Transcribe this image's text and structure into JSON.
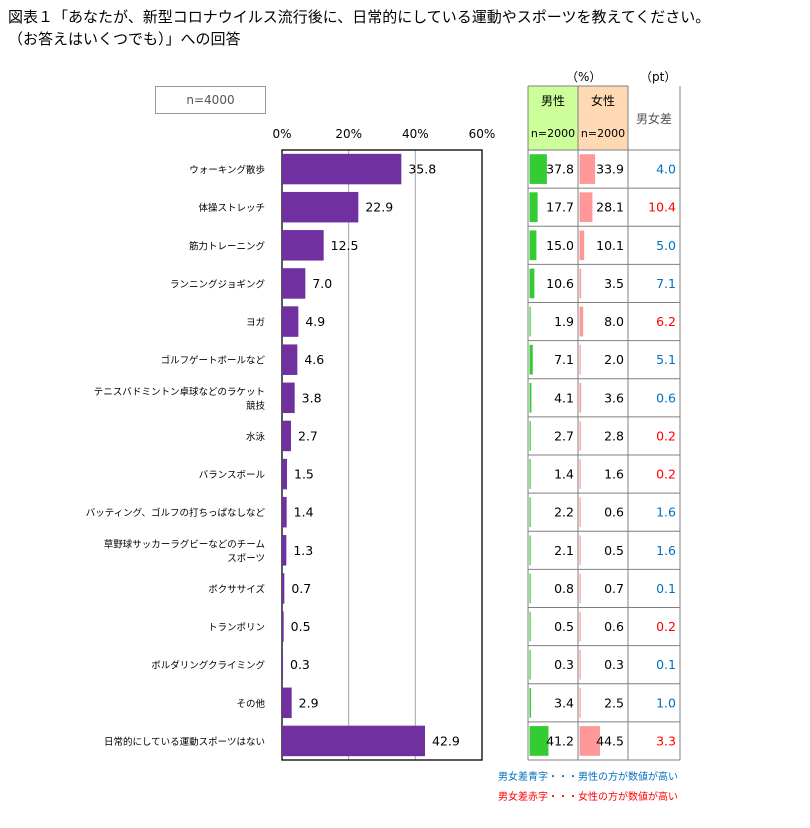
{
  "title_line1": "図表１「あなたが、新型コロナウイルス流行後に、日常的にしている運動やスポーツを教えてください。",
  "title_line2": "（お答えはいくつでも）」への回答",
  "sample_label": "n=4000",
  "unit_pct": "（%）",
  "unit_pt": "（pt）",
  "table_headers": {
    "male": "男性",
    "female": "女性",
    "male_n": "n=2000",
    "female_n": "n=2000",
    "diff": "男女差"
  },
  "notes": {
    "blue": "男女差青字・・・男性の方が数値が高い",
    "red": "男女差赤字・・・女性の方が数値が高い"
  },
  "colors": {
    "bar": "#7030a0",
    "male_bar": "#33cc33",
    "female_bar": "#ff9999",
    "male_header_bg": "#ccff99",
    "female_header_bg": "#ffd9b3",
    "blue_text": "#0070c0",
    "red_text": "#ff0000"
  },
  "chart_data": {
    "type": "bar",
    "orientation": "horizontal",
    "xlim": [
      0,
      60
    ],
    "xticks": [
      "0%",
      "20%",
      "40%",
      "60%"
    ],
    "grid": true,
    "categories": [
      [
        "ウォーキング散歩"
      ],
      [
        "体操ストレッチ"
      ],
      [
        "筋力トレーニング"
      ],
      [
        "ランニングジョギング"
      ],
      [
        "ヨガ"
      ],
      [
        "ゴルフゲートボールなど"
      ],
      [
        "テニスバドミントン卓球などのラケット",
        "競技"
      ],
      [
        "水泳"
      ],
      [
        "バランスボール"
      ],
      [
        "バッティング、ゴルフの打ちっぱなしなど"
      ],
      [
        "草野球サッカーラグビーなどのチーム",
        "スポーツ"
      ],
      [
        "ボクササイズ"
      ],
      [
        "トランポリン"
      ],
      [
        "ボルダリングクライミング"
      ],
      [
        "その他"
      ],
      [
        "日常的にしている運動スポーツはない"
      ]
    ],
    "values": [
      35.8,
      22.9,
      12.5,
      7.0,
      4.9,
      4.6,
      3.8,
      2.7,
      1.5,
      1.4,
      1.3,
      0.7,
      0.5,
      0.3,
      2.9,
      42.9
    ],
    "male": [
      37.8,
      17.7,
      15.0,
      10.6,
      1.9,
      7.1,
      4.1,
      2.7,
      1.4,
      2.2,
      2.1,
      0.8,
      0.5,
      0.3,
      3.4,
      41.2
    ],
    "female": [
      33.9,
      28.1,
      10.1,
      3.5,
      8.0,
      2.0,
      3.6,
      2.8,
      1.6,
      0.6,
      0.5,
      0.7,
      0.6,
      0.3,
      2.5,
      44.5
    ],
    "diff": [
      "4.0",
      "10.4",
      "5.0",
      "7.1",
      "6.2",
      "5.1",
      "0.6",
      "0.2",
      "0.2",
      "1.6",
      "1.6",
      "0.1",
      "0.2",
      "0.1",
      "1.0",
      "3.3"
    ],
    "diff_color": [
      "blue",
      "red",
      "blue",
      "blue",
      "red",
      "blue",
      "blue",
      "red",
      "red",
      "blue",
      "blue",
      "blue",
      "red",
      "blue",
      "blue",
      "red"
    ]
  }
}
